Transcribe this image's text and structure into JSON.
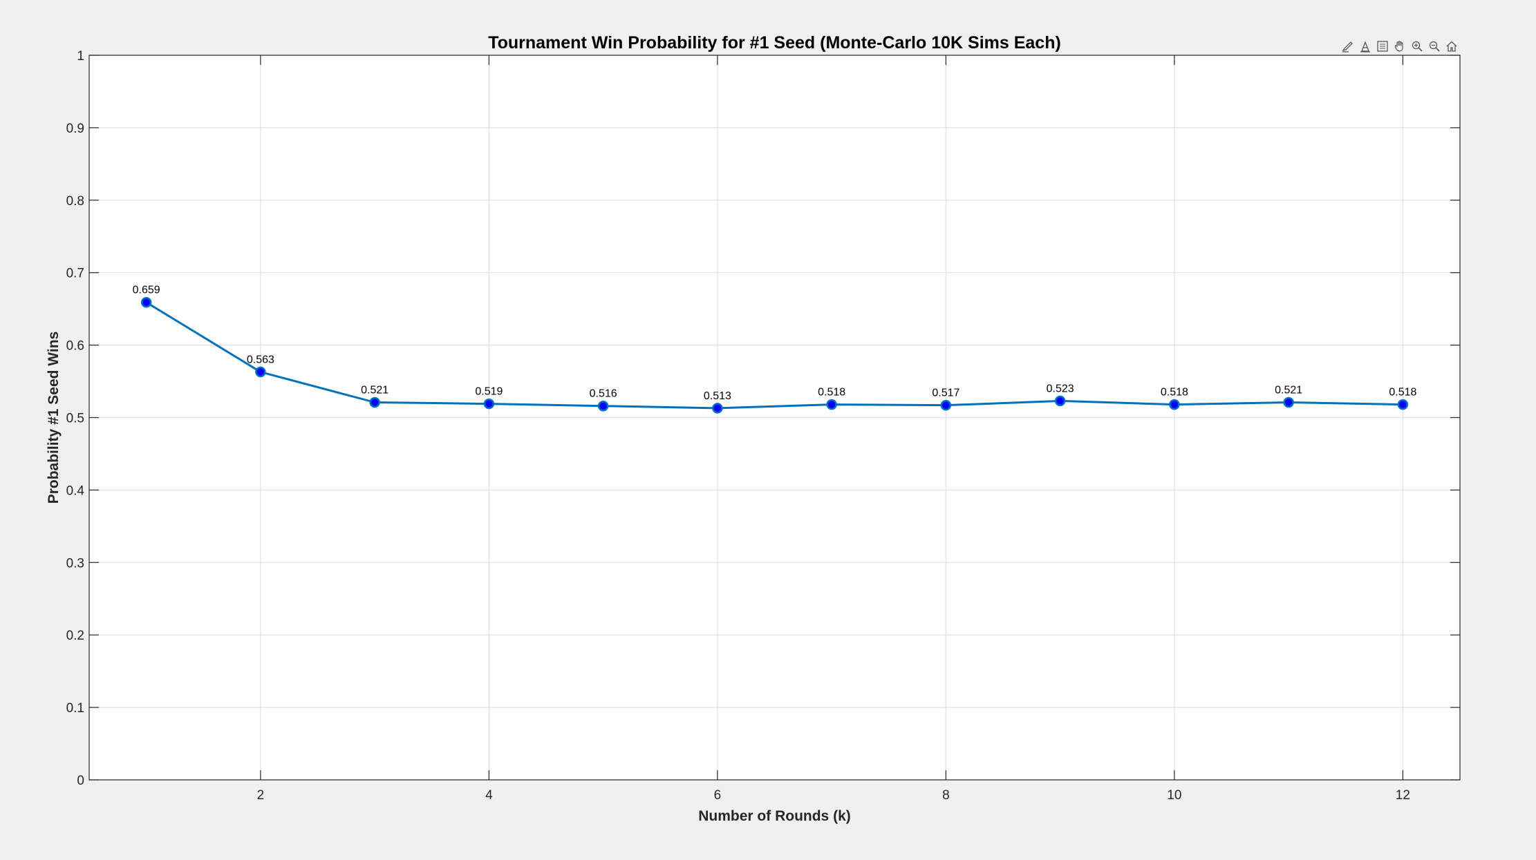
{
  "figure": {
    "background": "#f0f0f0",
    "axes_background": "#ffffff",
    "line_color": "#0072bd",
    "marker_fill": "#0000ff",
    "grid_color": "#dfdfdf",
    "axis_color": "#262626"
  },
  "toolbar": {
    "icons": [
      "brush-icon",
      "data-tips-icon",
      "legend-toggle-icon",
      "pan-hand-icon",
      "zoom-in-icon",
      "zoom-out-icon",
      "home-icon"
    ]
  },
  "chart_data": {
    "type": "line",
    "title": "Tournament Win Probability for #1 Seed (Monte-Carlo 10K Sims Each)",
    "xlabel": "Number of Rounds (k)",
    "ylabel": "Probability #1 Seed Wins",
    "xlim": [
      0.5,
      12.5
    ],
    "ylim": [
      0,
      1
    ],
    "xticks": [
      2,
      4,
      6,
      8,
      10,
      12
    ],
    "xtick_labels": [
      "2",
      "4",
      "6",
      "8",
      "10",
      "12"
    ],
    "yticks": [
      0,
      0.1,
      0.2,
      0.3,
      0.4,
      0.5,
      0.6,
      0.7,
      0.8,
      0.9,
      1
    ],
    "ytick_labels": [
      "0",
      "0.1",
      "0.2",
      "0.3",
      "0.4",
      "0.5",
      "0.6",
      "0.7",
      "0.8",
      "0.9",
      "1"
    ],
    "grid": true,
    "x": [
      1,
      2,
      3,
      4,
      5,
      6,
      7,
      8,
      9,
      10,
      11,
      12
    ],
    "series": [
      {
        "values": [
          0.659,
          0.563,
          0.521,
          0.519,
          0.516,
          0.513,
          0.518,
          0.517,
          0.523,
          0.518,
          0.521,
          0.518
        ],
        "data_labels": [
          "0.659",
          "0.563",
          "0.521",
          "0.519",
          "0.516",
          "0.513",
          "0.518",
          "0.517",
          "0.523",
          "0.518",
          "0.521",
          "0.518"
        ]
      }
    ]
  }
}
